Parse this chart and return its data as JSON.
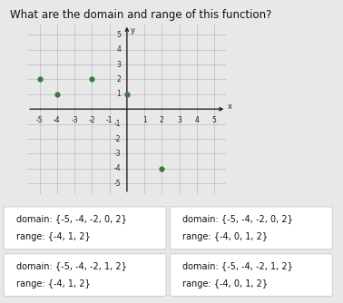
{
  "title": "What are the domain and range of this function?",
  "points": [
    [
      -5,
      2
    ],
    [
      -4,
      1
    ],
    [
      -2,
      2
    ],
    [
      0,
      1
    ],
    [
      2,
      -4
    ]
  ],
  "point_color": "#3a7a3a",
  "xlim": [
    -5.7,
    5.7
  ],
  "ylim": [
    -5.7,
    5.7
  ],
  "xticks": [
    -5,
    -4,
    -3,
    -2,
    -1,
    1,
    2,
    3,
    4,
    5
  ],
  "yticks": [
    -5,
    -4,
    -3,
    -2,
    -1,
    1,
    2,
    3,
    4,
    5
  ],
  "grid_color": "#bbbbbb",
  "axis_color": "#222222",
  "options": [
    {
      "domain": "{-5, -4, -2, 0, 2}",
      "range": "{-4, 1, 2}"
    },
    {
      "domain": "{-5, -4, -2, 0, 2}",
      "range": "{-4, 0, 1, 2}"
    },
    {
      "domain": "{-5, -4, -2, 1, 2}",
      "range": "{-4, 1, 2}"
    },
    {
      "domain": "{-5, -4, -2, 1, 2}",
      "range": "{-4, 0, 1, 2}"
    }
  ],
  "highlighted_option": -1,
  "bg_color": "#e8e8e8",
  "graph_bg": "#e8e8e8",
  "box_color": "#ffffff",
  "box_border": "#cccccc",
  "title_fontsize": 8.5,
  "tick_fontsize": 5.5,
  "option_fontsize": 7.0
}
